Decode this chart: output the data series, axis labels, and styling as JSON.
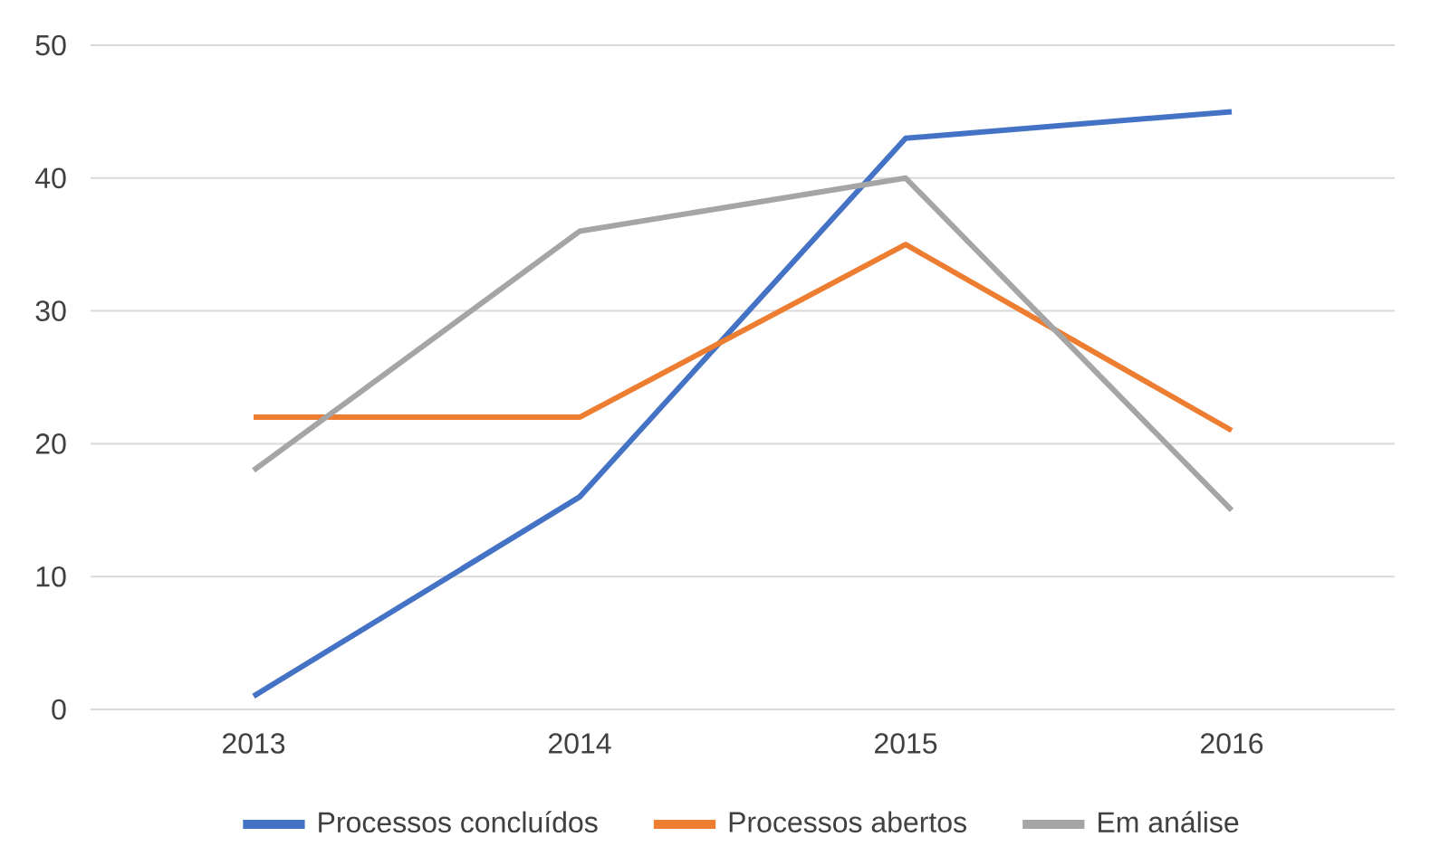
{
  "chart_data": {
    "type": "line",
    "categories": [
      "2013",
      "2014",
      "2015",
      "2016"
    ],
    "series": [
      {
        "name": "Processos concluídos",
        "color": "#4472c4",
        "values": [
          1,
          16,
          43,
          45
        ]
      },
      {
        "name": "Processos abertos",
        "color": "#ed7d31",
        "values": [
          22,
          22,
          35,
          21
        ]
      },
      {
        "name": "Em análise",
        "color": "#a5a5a5",
        "values": [
          18,
          36,
          40,
          15
        ]
      }
    ],
    "ylim": [
      0,
      50
    ],
    "yticks": [
      0,
      10,
      20,
      30,
      40,
      50
    ],
    "grid": "y",
    "legend": "bottom",
    "line_style": "solid"
  }
}
